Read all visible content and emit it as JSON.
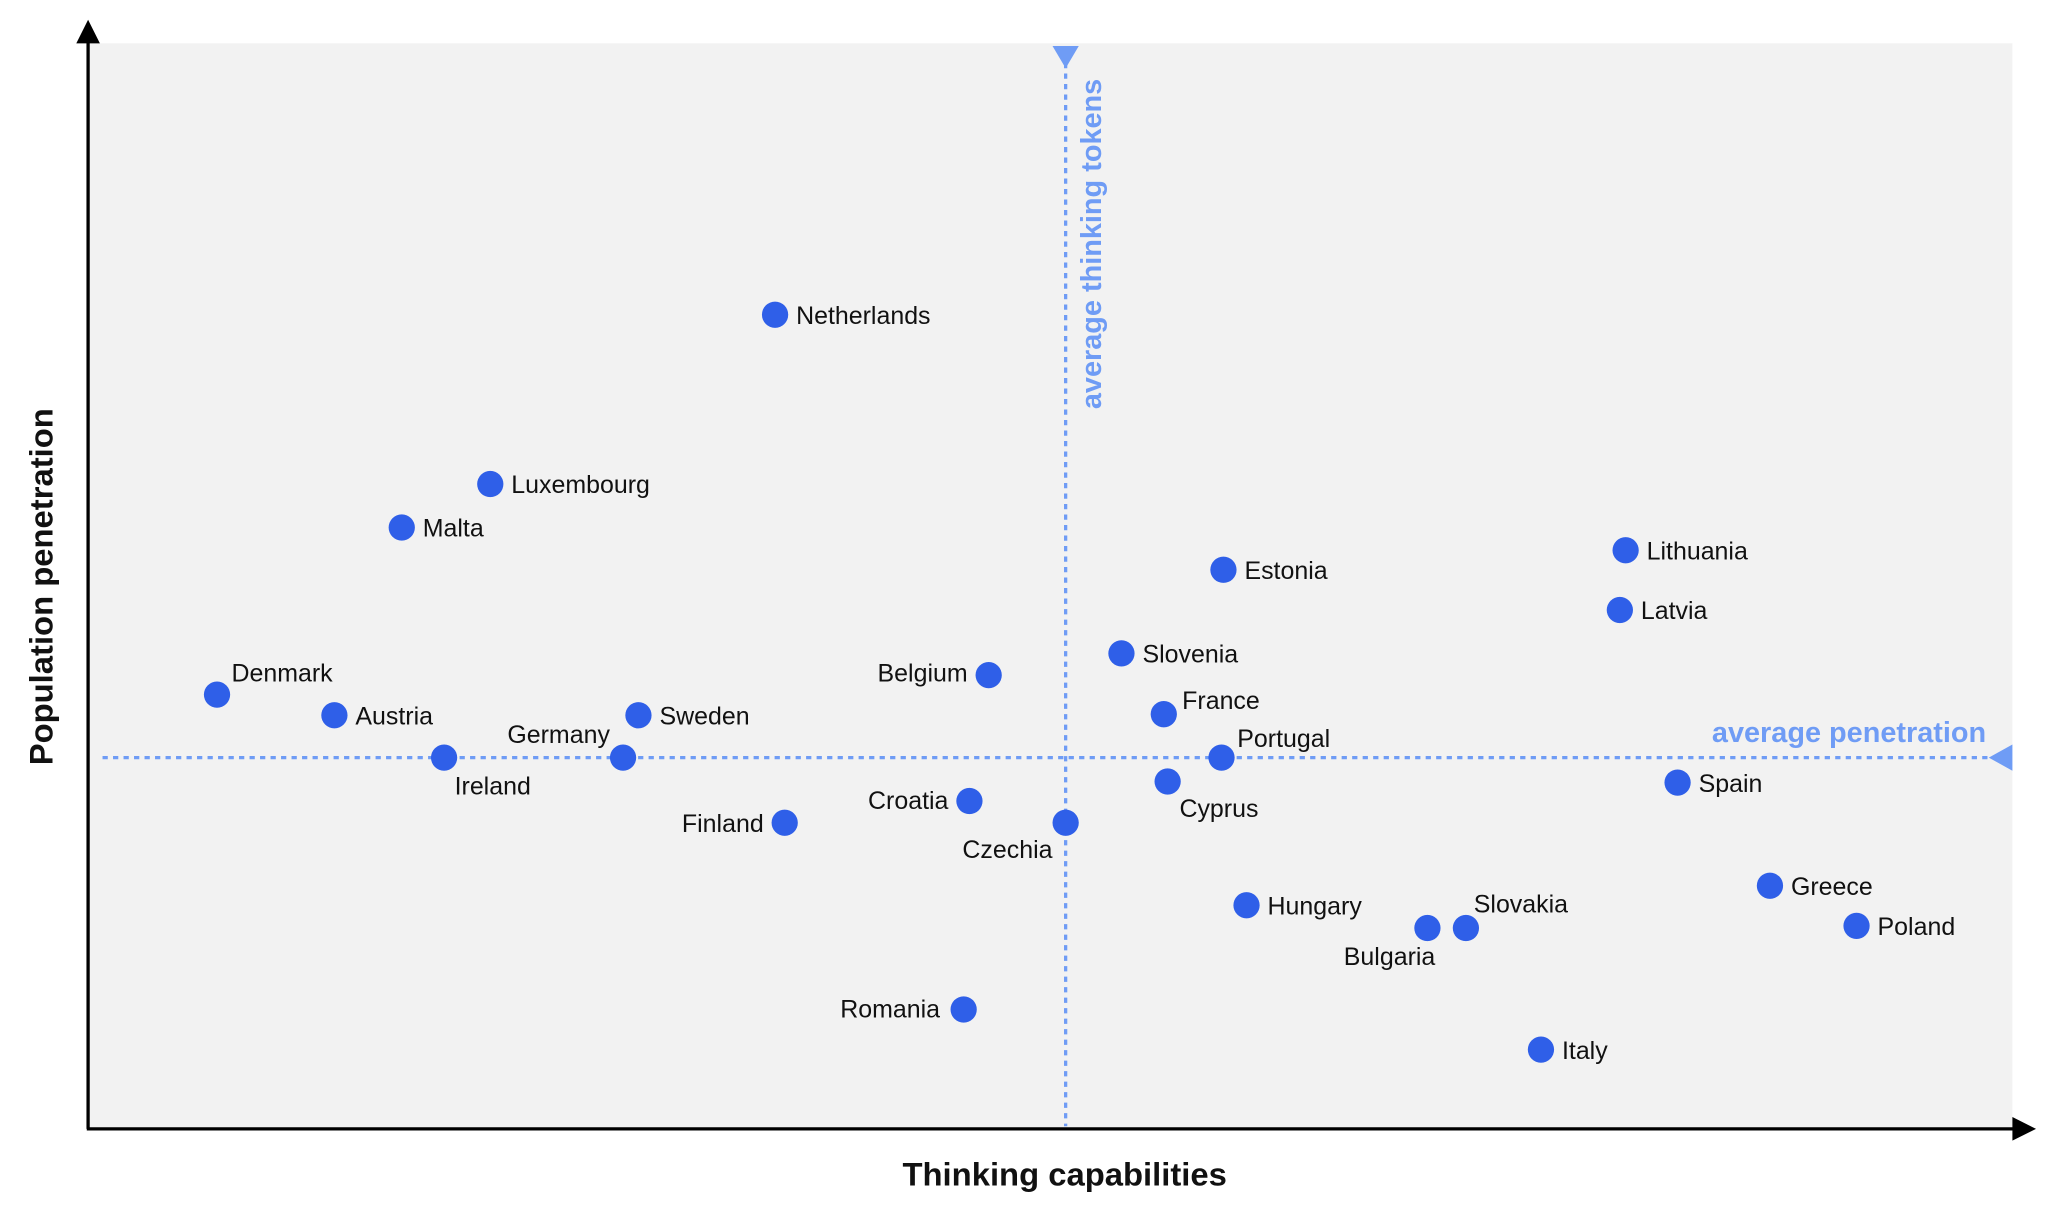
{
  "chart_data": {
    "type": "scatter",
    "title": "",
    "xlabel": "Thinking capabilities",
    "ylabel": "Population penetration",
    "xlim": [
      0,
      100
    ],
    "ylim": [
      0,
      100
    ],
    "grid": false,
    "ticks": false,
    "colors": {
      "points": "#2f5fe8",
      "average_lines": "#6f9cf5",
      "plot_background": "#f2f2f2",
      "axes": "#000000"
    },
    "reference_lines": {
      "vertical": {
        "label": "average thinking tokens",
        "x": 50.8
      },
      "horizontal": {
        "label": "average penetration",
        "y": 34.2
      }
    },
    "points": [
      {
        "name": "Netherlands",
        "x": 35.7,
        "y": 75.0
      },
      {
        "name": "Luxembourg",
        "x": 20.9,
        "y": 59.4
      },
      {
        "name": "Malta",
        "x": 16.3,
        "y": 55.4
      },
      {
        "name": "Estonia",
        "x": 59.0,
        "y": 51.5
      },
      {
        "name": "Lithuania",
        "x": 79.9,
        "y": 53.3
      },
      {
        "name": "Latvia",
        "x": 79.6,
        "y": 47.8
      },
      {
        "name": "Slovenia",
        "x": 53.7,
        "y": 43.8
      },
      {
        "name": "Belgium",
        "x": 46.8,
        "y": 41.8
      },
      {
        "name": "Denmark",
        "x": 6.7,
        "y": 40.0
      },
      {
        "name": "Austria",
        "x": 12.8,
        "y": 38.1
      },
      {
        "name": "Sweden",
        "x": 28.6,
        "y": 38.1
      },
      {
        "name": "France",
        "x": 55.9,
        "y": 38.2
      },
      {
        "name": "Germany",
        "x": 27.8,
        "y": 34.2
      },
      {
        "name": "Ireland",
        "x": 18.5,
        "y": 34.2
      },
      {
        "name": "Portugal",
        "x": 58.9,
        "y": 34.2
      },
      {
        "name": "Spain",
        "x": 82.6,
        "y": 31.9
      },
      {
        "name": "Cyprus",
        "x": 56.1,
        "y": 32.0
      },
      {
        "name": "Croatia",
        "x": 45.8,
        "y": 30.2
      },
      {
        "name": "Finland",
        "x": 36.2,
        "y": 28.2
      },
      {
        "name": "Czechia",
        "x": 50.8,
        "y": 28.2
      },
      {
        "name": "Greece",
        "x": 87.4,
        "y": 22.4
      },
      {
        "name": "Hungary",
        "x": 60.2,
        "y": 20.6
      },
      {
        "name": "Bulgaria",
        "x": 69.6,
        "y": 18.5
      },
      {
        "name": "Slovakia",
        "x": 71.6,
        "y": 18.5
      },
      {
        "name": "Poland",
        "x": 91.9,
        "y": 18.7
      },
      {
        "name": "Romania",
        "x": 45.5,
        "y": 11.0
      },
      {
        "name": "Italy",
        "x": 75.5,
        "y": 7.3
      }
    ]
  }
}
